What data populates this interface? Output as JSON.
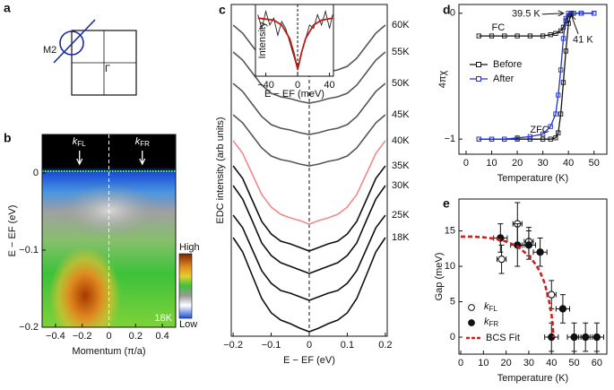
{
  "diagram": {
    "panel": "a",
    "labels": [
      "M2",
      "Γ"
    ]
  },
  "chart_data": [
    {
      "type": "heatmap",
      "panel": "b",
      "xlabel": "Momentum (π/a)",
      "ylabel": "E − EF (eV)",
      "xlim": [
        -0.5,
        0.5
      ],
      "ylim": [
        -0.2,
        0.05
      ],
      "xticks": [
        {
          "value": -0.4,
          "label": "−0.4"
        },
        {
          "value": -0.2,
          "label": "−0.2"
        },
        0,
        0.2,
        0.4
      ],
      "yticks": [
        0,
        {
          "value": -0.1,
          "label": "−0.1"
        },
        {
          "value": -0.2,
          "label": "−0.2"
        }
      ],
      "annotations": [
        {
          "text": "kFL",
          "x": -0.22
        },
        {
          "text": "kFR",
          "x": 0.25
        }
      ],
      "temperature_label": "18K",
      "colorbar_labels": [
        "High",
        "Low"
      ]
    },
    {
      "type": "line",
      "panel": "c",
      "xlabel": "E − EF (eV)",
      "ylabel": "EDC intensity (arb units)",
      "xlim": [
        -0.205,
        0.205
      ],
      "ylim": [
        0,
        37
      ],
      "xticks": [
        {
          "value": -0.2,
          "label": "−0.2"
        },
        {
          "value": -0.1,
          "label": "−0.1"
        },
        0,
        0.1,
        0.2
      ],
      "x": [
        -0.2,
        -0.175,
        -0.15,
        -0.125,
        -0.1,
        -0.075,
        -0.05,
        -0.025,
        0,
        0.025,
        0.05,
        0.075,
        0.1,
        0.125,
        0.15,
        0.175,
        0.2
      ],
      "series": [
        {
          "name": "60K",
          "color": "#555555",
          "values": [
            34.7,
            33.8,
            32.4,
            31.0,
            30.1,
            29.7,
            29.5,
            29.2,
            29.0,
            29.2,
            29.5,
            29.7,
            30.1,
            31.0,
            32.4,
            33.8,
            34.7
          ]
        },
        {
          "name": "55K",
          "color": "#555555",
          "values": [
            31.7,
            30.8,
            29.4,
            28.0,
            27.1,
            26.7,
            26.5,
            26.2,
            26.0,
            26.2,
            26.5,
            26.7,
            27.1,
            28.0,
            29.4,
            30.8,
            31.7
          ]
        },
        {
          "name": "50K",
          "color": "#555555",
          "values": [
            28.2,
            27.3,
            25.9,
            24.5,
            23.6,
            23.2,
            23.0,
            22.7,
            22.5,
            22.7,
            23.0,
            23.2,
            23.6,
            24.5,
            25.9,
            27.3,
            28.2
          ]
        },
        {
          "name": "45K",
          "color": "#555555",
          "values": [
            24.7,
            23.8,
            22.4,
            21.0,
            20.1,
            19.7,
            19.5,
            19.2,
            19.0,
            19.2,
            19.5,
            19.7,
            20.1,
            21.0,
            22.4,
            23.8,
            24.7
          ]
        },
        {
          "name": "40K",
          "color": "#f08a8a",
          "values": [
            21.8,
            20.4,
            18.1,
            15.8,
            14.4,
            13.6,
            13.2,
            12.9,
            12.5,
            12.9,
            13.2,
            13.6,
            14.4,
            15.8,
            18.1,
            20.4,
            21.8
          ]
        },
        {
          "name": "35K",
          "color": "#111111",
          "values": [
            19.0,
            17.6,
            15.2,
            12.8,
            11.4,
            10.6,
            10.3,
            9.9,
            9.5,
            9.9,
            10.3,
            10.6,
            11.4,
            12.8,
            15.2,
            17.6,
            19.0
          ]
        },
        {
          "name": "30K",
          "color": "#111111",
          "values": [
            16.8,
            15.3,
            12.9,
            10.4,
            9.0,
            8.2,
            7.8,
            7.4,
            7.0,
            7.4,
            7.8,
            8.2,
            9.0,
            10.4,
            12.9,
            15.3,
            16.8
          ]
        },
        {
          "name": "25K",
          "color": "#111111",
          "values": [
            13.5,
            12.1,
            9.7,
            7.3,
            5.9,
            5.1,
            4.8,
            4.4,
            4.0,
            4.4,
            4.8,
            5.1,
            5.9,
            7.3,
            9.7,
            12.1,
            13.5
          ]
        },
        {
          "name": "18K",
          "color": "#111111",
          "values": [
            11.0,
            9.4,
            6.8,
            4.2,
            2.6,
            1.8,
            1.4,
            0.9,
            0.5,
            0.9,
            1.4,
            1.8,
            2.6,
            4.2,
            6.8,
            9.4,
            11.0
          ]
        }
      ]
    },
    {
      "type": "line",
      "xlabel": "E − EF (meV)",
      "ylabel": "Intensity",
      "xlim": [
        -53,
        45
      ],
      "ylim": [
        0,
        1.05
      ],
      "xticks": [
        {
          "value": -40,
          "label": "−40"
        },
        0,
        40
      ],
      "series": [
        {
          "color": "#222222",
          "x": [
            -50,
            -45,
            -40,
            -35,
            -30,
            -25,
            -20,
            -15,
            -10,
            -5,
            0,
            5,
            10,
            15,
            20,
            25,
            30,
            35,
            40,
            44
          ],
          "values": [
            0.9,
            0.7,
            0.95,
            0.75,
            0.85,
            0.6,
            0.8,
            0.7,
            0.5,
            0.3,
            0.1,
            0.35,
            0.55,
            0.75,
            0.7,
            0.9,
            0.75,
            0.95,
            0.7,
            0.9
          ]
        },
        {
          "color": "#c01818",
          "x": [
            -50,
            -30,
            -20,
            -10,
            -5,
            0,
            5,
            10,
            20,
            30,
            44
          ],
          "values": [
            0.85,
            0.82,
            0.75,
            0.55,
            0.35,
            0.1,
            0.35,
            0.55,
            0.75,
            0.82,
            0.85
          ]
        }
      ]
    },
    {
      "type": "line",
      "panel": "d",
      "xlabel": "Temperature (K)",
      "ylabel": "4πχ",
      "xlim": [
        -2.8,
        55
      ],
      "ylim": [
        -1.12,
        0.07
      ],
      "xticks": [
        0,
        10,
        20,
        30,
        40,
        50
      ],
      "yticks": [
        0,
        {
          "value": -1,
          "label": "−1"
        }
      ],
      "legend": "center left",
      "branch_labels": [
        "FC",
        "ZFC"
      ],
      "annotations": [
        {
          "text": "39.5 K",
          "x": 39.5,
          "y": 0
        },
        {
          "text": "41 K",
          "x": 41,
          "y": 0
        }
      ],
      "series": [
        {
          "name": "Before",
          "color": "#111111",
          "x": [
            5,
            10,
            15,
            20,
            25,
            30,
            33,
            35,
            36,
            37,
            38,
            39,
            40,
            41,
            42,
            45,
            50,
            null,
            5,
            10,
            15,
            20,
            25,
            30,
            33,
            35,
            37,
            38,
            39,
            40,
            41,
            45,
            50
          ],
          "values": [
            -1,
            -1,
            -1,
            -1,
            -1,
            -1,
            -1,
            -0.99,
            -0.95,
            -0.8,
            -0.55,
            -0.3,
            -0.08,
            -0.01,
            0,
            0,
            0,
            null,
            -0.18,
            -0.18,
            -0.18,
            -0.18,
            -0.18,
            -0.18,
            -0.17,
            -0.16,
            -0.14,
            -0.11,
            -0.06,
            -0.02,
            0,
            0,
            0
          ]
        },
        {
          "name": "After",
          "color": "#2233cc",
          "x": [
            5,
            10,
            15,
            20,
            25,
            30,
            33,
            35,
            36,
            37,
            38,
            39,
            40,
            45,
            50
          ],
          "values": [
            -1,
            -1,
            -1,
            -0.99,
            -0.98,
            -0.96,
            -0.9,
            -0.8,
            -0.65,
            -0.45,
            -0.2,
            -0.04,
            0,
            0,
            0
          ]
        }
      ]
    },
    {
      "type": "scatter",
      "panel": "e",
      "xlabel": "Temperature (K)",
      "ylabel": "Gap (meV)",
      "xlim": [
        -0.8,
        64.4
      ],
      "ylim": [
        -2.4,
        19.5
      ],
      "xticks": [
        0,
        10,
        20,
        30,
        40,
        50,
        60
      ],
      "yticks": [
        0,
        5,
        10,
        15
      ],
      "legend": "lower left",
      "series": [
        {
          "name": "kFL",
          "marker": "open",
          "color": "#111111",
          "x": [
            18,
            25,
            30,
            40
          ],
          "values": [
            11,
            16,
            13.5,
            6
          ],
          "xerr": [
            2,
            2,
            2,
            2
          ],
          "yerr": [
            2,
            3,
            2,
            2
          ]
        },
        {
          "name": "kFR",
          "marker": "filled",
          "color": "#111111",
          "x": [
            17.5,
            25,
            30,
            35,
            45,
            40,
            50,
            55,
            60
          ],
          "values": [
            14,
            13,
            13,
            12,
            4,
            0,
            0,
            0,
            0
          ],
          "xerr": [
            3,
            3,
            3,
            3,
            3,
            3,
            3,
            3,
            3
          ],
          "yerr": [
            2,
            3,
            2,
            2,
            2,
            2,
            2,
            2,
            2
          ]
        },
        {
          "name": "BCS Fit",
          "marker": "dashed-line",
          "color": "#cc1f1f",
          "x": [
            0,
            5,
            10,
            15,
            20,
            25,
            30,
            33,
            35,
            37,
            39,
            40,
            41
          ],
          "values": [
            14.2,
            14.2,
            14.1,
            13.9,
            13.5,
            12.8,
            11.5,
            10.3,
            9.2,
            7.6,
            5.0,
            3.2,
            0
          ]
        }
      ]
    }
  ]
}
